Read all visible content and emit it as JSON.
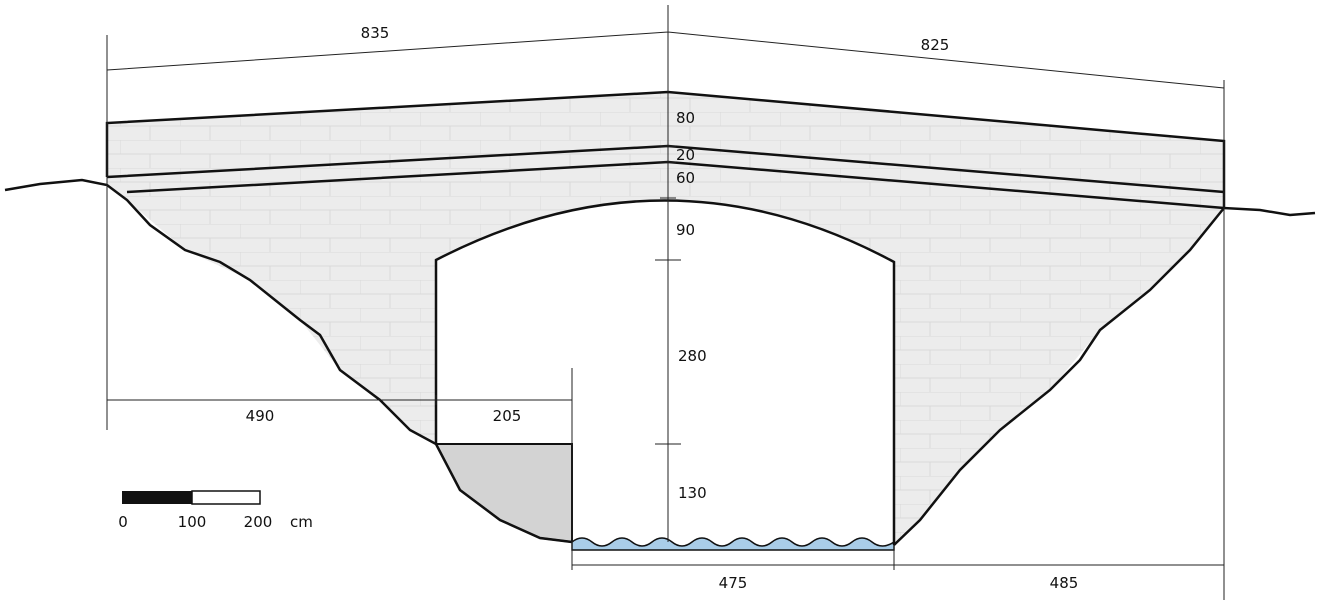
{
  "dimensions": {
    "span_left": "835",
    "span_right": "825",
    "deck": "80",
    "course": "20",
    "arch_ring": "60",
    "arch_rise": "90",
    "pier_height": "280",
    "water_clearance": "130",
    "left_abutment": "490",
    "step_width": "205",
    "opening": "475",
    "right_abutment": "485"
  },
  "scale_bar": {
    "labels": [
      "0",
      "100",
      "200"
    ],
    "unit": "cm"
  }
}
